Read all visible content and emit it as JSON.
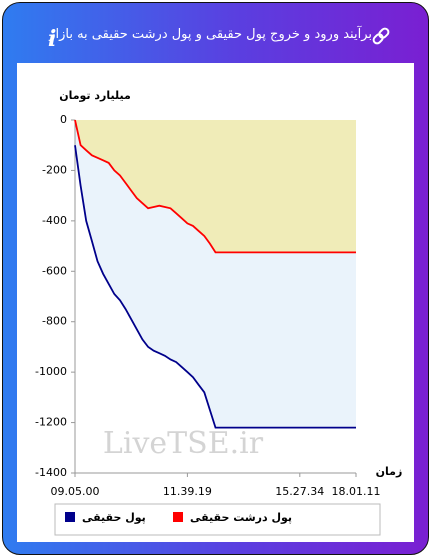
{
  "header": {
    "title": "برآیند ورود و خروج پول حقیقی و پول درشت حقیقی به بازار"
  },
  "chart_data": {
    "type": "line",
    "y_label": "میلیارد تومان",
    "x_label": "زمان",
    "watermark": "LiveTSE.ir",
    "x": [
      0,
      1,
      2,
      3,
      4,
      5,
      6,
      7,
      8,
      9,
      10,
      11,
      12,
      13,
      14,
      15,
      16,
      17,
      18,
      19,
      20,
      21,
      22,
      23,
      24,
      25,
      26,
      27,
      28,
      29,
      30,
      31,
      32,
      33,
      34,
      35,
      36,
      37,
      38,
      39,
      40,
      41,
      42,
      43,
      44,
      45,
      46,
      47,
      48,
      49,
      50
    ],
    "xlim": [
      0,
      50
    ],
    "xticks": [
      {
        "value": 0,
        "label": "09.05.00"
      },
      {
        "value": 20,
        "label": "11.39.19"
      },
      {
        "value": 40,
        "label": "15.27.34"
      },
      {
        "value": 50,
        "label": "18.01.11"
      }
    ],
    "ylim": [
      -1400,
      0
    ],
    "yticks": [
      0,
      -200,
      -400,
      -600,
      -800,
      -1000,
      -1200,
      -1400
    ],
    "series": [
      {
        "name": "پول حقیقی",
        "color": "#00008b",
        "values": [
          -100,
          -260,
          -400,
          -480,
          -560,
          -610,
          -650,
          -690,
          -715,
          -750,
          -790,
          -830,
          -870,
          -900,
          -915,
          -925,
          -935,
          -950,
          -960,
          -980,
          -1000,
          -1020,
          -1050,
          -1080,
          -1150,
          -1220,
          -1220,
          -1220,
          -1220,
          -1220,
          -1220,
          -1220,
          -1220,
          -1220,
          -1220,
          -1220,
          -1220,
          -1220,
          -1220,
          -1220,
          -1220,
          -1220,
          -1220,
          -1220,
          -1220,
          -1220,
          -1220,
          -1220,
          -1220,
          -1220,
          -1220
        ]
      },
      {
        "name": "پول درشت حقیقی",
        "color": "#ff0000",
        "values": [
          0,
          -100,
          -120,
          -140,
          -150,
          -160,
          -170,
          -200,
          -220,
          -250,
          -280,
          -310,
          -330,
          -350,
          -345,
          -340,
          -345,
          -350,
          -370,
          -390,
          -410,
          -420,
          -440,
          -460,
          -490,
          -525,
          -525,
          -525,
          -525,
          -525,
          -525,
          -525,
          -525,
          -525,
          -525,
          -525,
          -525,
          -525,
          -525,
          -525,
          -525,
          -525,
          -525,
          -525,
          -525,
          -525,
          -525,
          -525,
          -525,
          -525,
          -525
        ]
      }
    ]
  }
}
